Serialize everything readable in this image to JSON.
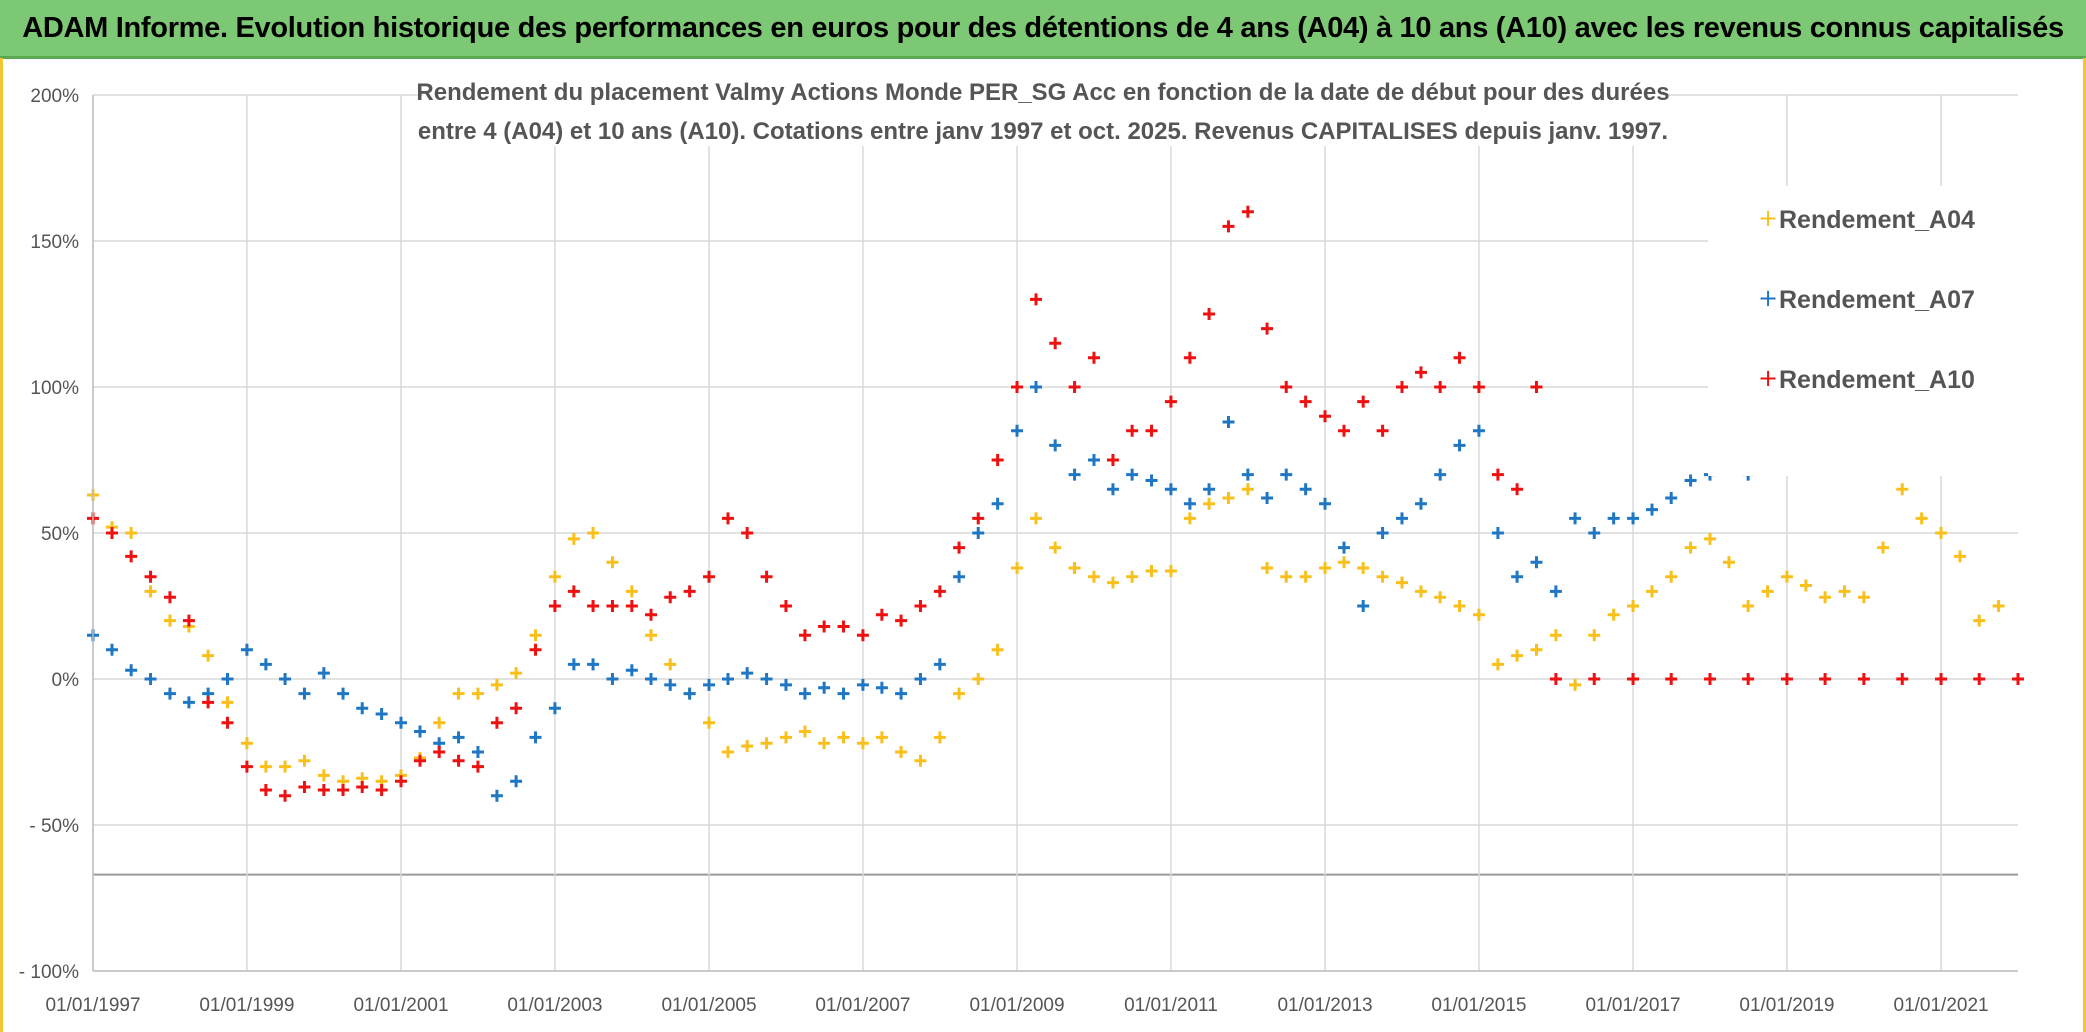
{
  "banner": {
    "title": "ADAM Informe. Evolution historique des performances en euros pour des détentions de 4 ans (A04) à 10 ans (A10) avec les revenus connus capitalisés"
  },
  "colors": {
    "banner_bg": "#7dc874",
    "A04": "#f9c01b",
    "A07": "#1f77c4",
    "A10": "#ee1111",
    "grid": "#d9d9d9"
  },
  "chart_data": {
    "type": "scatter",
    "title_lines": [
      "Rendement du placement Valmy Actions Monde PER_SG Acc en fonction de la date de début pour des durées",
      "entre 4 (A04) et 10 ans (A10). Cotations entre janv 1997 et oct. 2025. Revenus CAPITALISES depuis janv. 1997."
    ],
    "xlabel": "",
    "ylabel": "",
    "x_ticks": [
      "01/01/1997",
      "01/01/1999",
      "01/01/2001",
      "01/01/2003",
      "01/01/2005",
      "01/01/2007",
      "01/01/2009",
      "01/01/2011",
      "01/01/2013",
      "01/01/2015",
      "01/01/2017",
      "01/01/2019",
      "01/01/2021"
    ],
    "y_ticks": [
      "200%",
      "150%",
      "100%",
      "50%",
      "0%",
      "- 50%",
      "- 100%"
    ],
    "y_tick_values": [
      200,
      150,
      100,
      50,
      0,
      -50,
      -100
    ],
    "xlim": [
      "1997-01-01",
      "2022-01-01"
    ],
    "ylim": [
      -100,
      200
    ],
    "legend_position": "top-right",
    "series": [
      {
        "name": "Rendement_A04",
        "color": "#f9c01b",
        "points": [
          [
            "1997-01-01",
            63
          ],
          [
            "1997-04-01",
            52
          ],
          [
            "1997-07-01",
            50
          ],
          [
            "1997-10-01",
            30
          ],
          [
            "1998-01-01",
            20
          ],
          [
            "1998-04-01",
            18
          ],
          [
            "1998-07-01",
            8
          ],
          [
            "1998-10-01",
            -8
          ],
          [
            "1999-01-01",
            -22
          ],
          [
            "1999-04-01",
            -30
          ],
          [
            "1999-07-01",
            -30
          ],
          [
            "1999-10-01",
            -28
          ],
          [
            "2000-01-01",
            -33
          ],
          [
            "2000-04-01",
            -35
          ],
          [
            "2000-07-01",
            -34
          ],
          [
            "2000-10-01",
            -35
          ],
          [
            "2001-01-01",
            -33
          ],
          [
            "2001-04-01",
            -27
          ],
          [
            "2001-07-01",
            -15
          ],
          [
            "2001-10-01",
            -5
          ],
          [
            "2002-01-01",
            -5
          ],
          [
            "2002-04-01",
            -2
          ],
          [
            "2002-07-01",
            2
          ],
          [
            "2002-10-01",
            15
          ],
          [
            "2003-01-01",
            35
          ],
          [
            "2003-04-01",
            48
          ],
          [
            "2003-07-01",
            50
          ],
          [
            "2003-10-01",
            40
          ],
          [
            "2004-01-01",
            30
          ],
          [
            "2004-04-01",
            15
          ],
          [
            "2004-07-01",
            5
          ],
          [
            "2004-10-01",
            -5
          ],
          [
            "2005-01-01",
            -15
          ],
          [
            "2005-04-01",
            -25
          ],
          [
            "2005-07-01",
            -23
          ],
          [
            "2005-10-01",
            -22
          ],
          [
            "2006-01-01",
            -20
          ],
          [
            "2006-04-01",
            -18
          ],
          [
            "2006-07-01",
            -22
          ],
          [
            "2006-10-01",
            -20
          ],
          [
            "2007-01-01",
            -22
          ],
          [
            "2007-04-01",
            -20
          ],
          [
            "2007-07-01",
            -25
          ],
          [
            "2007-10-01",
            -28
          ],
          [
            "2008-01-01",
            -20
          ],
          [
            "2008-04-01",
            -5
          ],
          [
            "2008-07-01",
            0
          ],
          [
            "2008-10-01",
            10
          ],
          [
            "2009-01-01",
            38
          ],
          [
            "2009-04-01",
            55
          ],
          [
            "2009-07-01",
            45
          ],
          [
            "2009-10-01",
            38
          ],
          [
            "2010-01-01",
            35
          ],
          [
            "2010-04-01",
            33
          ],
          [
            "2010-07-01",
            35
          ],
          [
            "2010-10-01",
            37
          ],
          [
            "2011-01-01",
            37
          ],
          [
            "2011-04-01",
            55
          ],
          [
            "2011-07-01",
            60
          ],
          [
            "2011-10-01",
            62
          ],
          [
            "2012-01-01",
            65
          ],
          [
            "2012-04-01",
            38
          ],
          [
            "2012-07-01",
            35
          ],
          [
            "2012-10-01",
            35
          ],
          [
            "2013-01-01",
            38
          ],
          [
            "2013-04-01",
            40
          ],
          [
            "2013-07-01",
            38
          ],
          [
            "2013-10-01",
            35
          ],
          [
            "2014-01-01",
            33
          ],
          [
            "2014-04-01",
            30
          ],
          [
            "2014-07-01",
            28
          ],
          [
            "2014-10-01",
            25
          ],
          [
            "2015-01-01",
            22
          ],
          [
            "2015-04-01",
            5
          ],
          [
            "2015-07-01",
            8
          ],
          [
            "2015-10-01",
            10
          ],
          [
            "2016-01-01",
            15
          ],
          [
            "2016-04-01",
            -2
          ],
          [
            "2016-07-01",
            15
          ],
          [
            "2016-10-01",
            22
          ],
          [
            "2017-01-01",
            25
          ],
          [
            "2017-04-01",
            30
          ],
          [
            "2017-07-01",
            35
          ],
          [
            "2017-10-01",
            45
          ],
          [
            "2018-01-01",
            48
          ],
          [
            "2018-04-01",
            40
          ],
          [
            "2018-07-01",
            25
          ],
          [
            "2018-10-01",
            30
          ],
          [
            "2019-01-01",
            35
          ],
          [
            "2019-04-01",
            32
          ],
          [
            "2019-07-01",
            28
          ],
          [
            "2019-10-01",
            30
          ],
          [
            "2020-01-01",
            28
          ],
          [
            "2020-04-01",
            45
          ],
          [
            "2020-07-01",
            65
          ],
          [
            "2020-10-01",
            55
          ],
          [
            "2021-01-01",
            50
          ],
          [
            "2021-04-01",
            42
          ],
          [
            "2021-07-01",
            20
          ],
          [
            "2021-10-01",
            25
          ]
        ]
      },
      {
        "name": "Rendement_A07",
        "color": "#1f77c4",
        "points": [
          [
            "1997-01-01",
            15
          ],
          [
            "1997-04-01",
            10
          ],
          [
            "1997-07-01",
            3
          ],
          [
            "1997-10-01",
            0
          ],
          [
            "1998-01-01",
            -5
          ],
          [
            "1998-04-01",
            -8
          ],
          [
            "1998-07-01",
            -5
          ],
          [
            "1998-10-01",
            0
          ],
          [
            "1999-01-01",
            10
          ],
          [
            "1999-04-01",
            5
          ],
          [
            "1999-07-01",
            0
          ],
          [
            "1999-10-01",
            -5
          ],
          [
            "2000-01-01",
            2
          ],
          [
            "2000-04-01",
            -5
          ],
          [
            "2000-07-01",
            -10
          ],
          [
            "2000-10-01",
            -12
          ],
          [
            "2001-01-01",
            -15
          ],
          [
            "2001-04-01",
            -18
          ],
          [
            "2001-07-01",
            -22
          ],
          [
            "2001-10-01",
            -20
          ],
          [
            "2002-01-01",
            -25
          ],
          [
            "2002-04-01",
            -40
          ],
          [
            "2002-07-01",
            -35
          ],
          [
            "2002-10-01",
            -20
          ],
          [
            "2003-01-01",
            -10
          ],
          [
            "2003-04-01",
            5
          ],
          [
            "2003-07-01",
            5
          ],
          [
            "2003-10-01",
            0
          ],
          [
            "2004-01-01",
            3
          ],
          [
            "2004-04-01",
            0
          ],
          [
            "2004-07-01",
            -2
          ],
          [
            "2004-10-01",
            -5
          ],
          [
            "2005-01-01",
            -2
          ],
          [
            "2005-04-01",
            0
          ],
          [
            "2005-07-01",
            2
          ],
          [
            "2005-10-01",
            0
          ],
          [
            "2006-01-01",
            -2
          ],
          [
            "2006-04-01",
            -5
          ],
          [
            "2006-07-01",
            -3
          ],
          [
            "2006-10-01",
            -5
          ],
          [
            "2007-01-01",
            -2
          ],
          [
            "2007-04-01",
            -3
          ],
          [
            "2007-07-01",
            -5
          ],
          [
            "2007-10-01",
            0
          ],
          [
            "2008-01-01",
            5
          ],
          [
            "2008-04-01",
            35
          ],
          [
            "2008-07-01",
            50
          ],
          [
            "2008-10-01",
            60
          ],
          [
            "2009-01-01",
            85
          ],
          [
            "2009-04-01",
            100
          ],
          [
            "2009-07-01",
            80
          ],
          [
            "2009-10-01",
            70
          ],
          [
            "2010-01-01",
            75
          ],
          [
            "2010-04-01",
            65
          ],
          [
            "2010-07-01",
            70
          ],
          [
            "2010-10-01",
            68
          ],
          [
            "2011-01-01",
            65
          ],
          [
            "2011-04-01",
            60
          ],
          [
            "2011-07-01",
            65
          ],
          [
            "2011-10-01",
            88
          ],
          [
            "2012-01-01",
            70
          ],
          [
            "2012-04-01",
            62
          ],
          [
            "2012-07-01",
            70
          ],
          [
            "2012-10-01",
            65
          ],
          [
            "2013-01-01",
            60
          ],
          [
            "2013-04-01",
            45
          ],
          [
            "2013-07-01",
            25
          ],
          [
            "2013-10-01",
            50
          ],
          [
            "2014-01-01",
            55
          ],
          [
            "2014-04-01",
            60
          ],
          [
            "2014-07-01",
            70
          ],
          [
            "2014-10-01",
            80
          ],
          [
            "2015-01-01",
            85
          ],
          [
            "2015-04-01",
            50
          ],
          [
            "2015-07-01",
            35
          ],
          [
            "2015-10-01",
            40
          ],
          [
            "2016-01-01",
            30
          ],
          [
            "2016-04-01",
            55
          ],
          [
            "2016-07-01",
            50
          ],
          [
            "2016-10-01",
            55
          ],
          [
            "2017-01-01",
            55
          ],
          [
            "2017-04-01",
            58
          ],
          [
            "2017-07-01",
            62
          ],
          [
            "2017-10-01",
            68
          ],
          [
            "2018-01-01",
            70
          ],
          [
            "2018-04-01",
            78
          ],
          [
            "2018-07-01",
            70
          ],
          [
            "2018-10-01",
            75
          ]
        ]
      },
      {
        "name": "Rendement_A10",
        "color": "#ee1111",
        "points": [
          [
            "1997-01-01",
            55
          ],
          [
            "1997-04-01",
            50
          ],
          [
            "1997-07-01",
            42
          ],
          [
            "1997-10-01",
            35
          ],
          [
            "1998-01-01",
            28
          ],
          [
            "1998-04-01",
            20
          ],
          [
            "1998-07-01",
            -8
          ],
          [
            "1998-10-01",
            -15
          ],
          [
            "1999-01-01",
            -30
          ],
          [
            "1999-04-01",
            -38
          ],
          [
            "1999-07-01",
            -40
          ],
          [
            "1999-10-01",
            -37
          ],
          [
            "2000-01-01",
            -38
          ],
          [
            "2000-04-01",
            -38
          ],
          [
            "2000-07-01",
            -37
          ],
          [
            "2000-10-01",
            -38
          ],
          [
            "2001-01-01",
            -35
          ],
          [
            "2001-04-01",
            -28
          ],
          [
            "2001-07-01",
            -25
          ],
          [
            "2001-10-01",
            -28
          ],
          [
            "2002-01-01",
            -30
          ],
          [
            "2002-04-01",
            -15
          ],
          [
            "2002-07-01",
            -10
          ],
          [
            "2002-10-01",
            10
          ],
          [
            "2003-01-01",
            25
          ],
          [
            "2003-04-01",
            30
          ],
          [
            "2003-07-01",
            25
          ],
          [
            "2003-10-01",
            25
          ],
          [
            "2004-01-01",
            25
          ],
          [
            "2004-04-01",
            22
          ],
          [
            "2004-07-01",
            28
          ],
          [
            "2004-10-01",
            30
          ],
          [
            "2005-01-01",
            35
          ],
          [
            "2005-04-01",
            55
          ],
          [
            "2005-07-01",
            50
          ],
          [
            "2005-10-01",
            35
          ],
          [
            "2006-01-01",
            25
          ],
          [
            "2006-04-01",
            15
          ],
          [
            "2006-07-01",
            18
          ],
          [
            "2006-10-01",
            18
          ],
          [
            "2007-01-01",
            15
          ],
          [
            "2007-04-01",
            22
          ],
          [
            "2007-07-01",
            20
          ],
          [
            "2007-10-01",
            25
          ],
          [
            "2008-01-01",
            30
          ],
          [
            "2008-04-01",
            45
          ],
          [
            "2008-07-01",
            55
          ],
          [
            "2008-10-01",
            75
          ],
          [
            "2009-01-01",
            100
          ],
          [
            "2009-04-01",
            130
          ],
          [
            "2009-07-01",
            115
          ],
          [
            "2009-10-01",
            100
          ],
          [
            "2010-01-01",
            110
          ],
          [
            "2010-04-01",
            75
          ],
          [
            "2010-07-01",
            85
          ],
          [
            "2010-10-01",
            85
          ],
          [
            "2011-01-01",
            95
          ],
          [
            "2011-04-01",
            110
          ],
          [
            "2011-07-01",
            125
          ],
          [
            "2011-10-01",
            155
          ],
          [
            "2012-01-01",
            160
          ],
          [
            "2012-04-01",
            120
          ],
          [
            "2012-07-01",
            100
          ],
          [
            "2012-10-01",
            95
          ],
          [
            "2013-01-01",
            90
          ],
          [
            "2013-04-01",
            85
          ],
          [
            "2013-07-01",
            95
          ],
          [
            "2013-10-01",
            85
          ],
          [
            "2014-01-01",
            100
          ],
          [
            "2014-04-01",
            105
          ],
          [
            "2014-07-01",
            100
          ],
          [
            "2014-10-01",
            110
          ],
          [
            "2015-01-01",
            100
          ],
          [
            "2015-04-01",
            70
          ],
          [
            "2015-07-01",
            65
          ],
          [
            "2015-10-01",
            100
          ],
          [
            "2016-01-01",
            0
          ],
          [
            "2016-07-01",
            0
          ],
          [
            "2017-01-01",
            0
          ],
          [
            "2017-07-01",
            0
          ],
          [
            "2018-01-01",
            0
          ],
          [
            "2018-07-01",
            0
          ],
          [
            "2019-01-01",
            0
          ],
          [
            "2019-07-01",
            0
          ],
          [
            "2020-01-01",
            0
          ],
          [
            "2020-07-01",
            0
          ],
          [
            "2021-01-01",
            0
          ],
          [
            "2021-07-01",
            0
          ],
          [
            "2022-01-01",
            0
          ]
        ]
      }
    ]
  }
}
